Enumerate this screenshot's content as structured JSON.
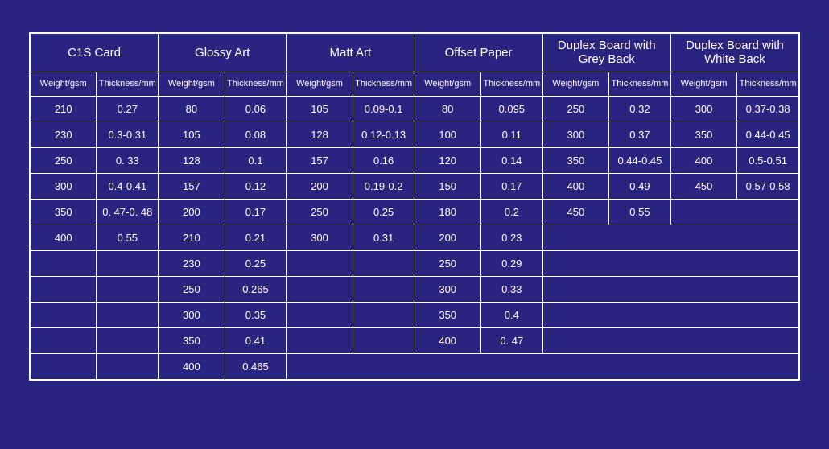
{
  "table": {
    "background_color": "#29247f",
    "border_color": "#ffffff",
    "text_color": "#ffffff",
    "category_fontsize": 15,
    "subheader_fontsize": 11,
    "cell_fontsize": 13,
    "categories": [
      {
        "label": "C1S Card"
      },
      {
        "label": "Glossy Art"
      },
      {
        "label": "Matt Art"
      },
      {
        "label": "Offset Paper"
      },
      {
        "label": "Duplex Board with Grey Back"
      },
      {
        "label": "Duplex Board with White Back"
      }
    ],
    "sub_labels": {
      "weight": "Weight/gsm",
      "thickness": "Thickness/mm"
    },
    "rows": [
      [
        "210",
        "0.27",
        "80",
        "0.06",
        "105",
        "0.09-0.1",
        "80",
        "0.095",
        "250",
        "0.32",
        "300",
        "0.37-0.38"
      ],
      [
        "230",
        "0.3-0.31",
        "105",
        "0.08",
        "128",
        "0.12-0.13",
        "100",
        "0.11",
        "300",
        "0.37",
        "350",
        "0.44-0.45"
      ],
      [
        "250",
        "0. 33",
        "128",
        "0.1",
        "157",
        "0.16",
        "120",
        "0.14",
        "350",
        "0.44-0.45",
        "400",
        "0.5-0.51"
      ],
      [
        "300",
        "0.4-0.41",
        "157",
        "0.12",
        "200",
        "0.19-0.2",
        "150",
        "0.17",
        "400",
        "0.49",
        "450",
        "0.57-0.58"
      ],
      [
        "350",
        "0. 47-0. 48",
        "200",
        "0.17",
        "250",
        "0.25",
        "180",
        "0.2",
        "450",
        "0.55",
        "",
        ""
      ],
      [
        "400",
        "0.55",
        "210",
        "0.21",
        "300",
        "0.31",
        "200",
        "0.23",
        "",
        "",
        "",
        ""
      ],
      [
        "",
        "",
        "230",
        "0.25",
        "",
        "",
        "250",
        "0.29",
        "",
        "",
        "",
        ""
      ],
      [
        "",
        "",
        "250",
        "0.265",
        "",
        "",
        "300",
        "0.33",
        "",
        "",
        "",
        ""
      ],
      [
        "",
        "",
        "300",
        "0.35",
        "",
        "",
        "350",
        "0.4",
        "",
        "",
        "",
        ""
      ],
      [
        "",
        "",
        "350",
        "0.41",
        "",
        "",
        "400",
        "0. 47",
        "",
        "",
        "",
        ""
      ],
      [
        "",
        "",
        "400",
        "0.465",
        "",
        "",
        "",
        "",
        "",
        "",
        "",
        ""
      ]
    ]
  }
}
